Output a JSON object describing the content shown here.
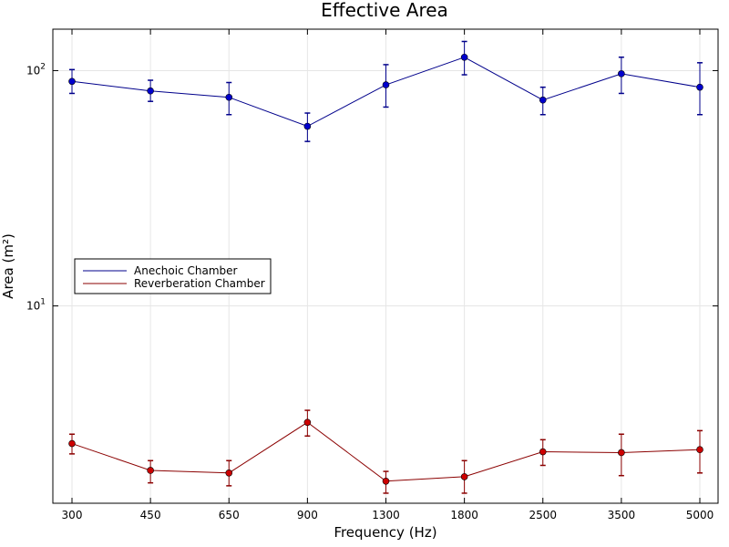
{
  "chart_data": {
    "type": "line",
    "title": "Effective Area",
    "xlabel": "Frequency (Hz)",
    "ylabel": "Area (m²)",
    "categories": [
      "300",
      "450",
      "650",
      "900",
      "1300",
      "1800",
      "2500",
      "3500",
      "5000"
    ],
    "y_scale": "log",
    "ylim": [
      1.45,
      150
    ],
    "yticks": [
      {
        "value": 10,
        "base": "10",
        "exp": "1"
      },
      {
        "value": 100,
        "base": "10",
        "exp": "2"
      }
    ],
    "grid": true,
    "legend": "middle-left",
    "series": [
      {
        "name": "Anechoic Chamber",
        "color": "#00008b",
        "marker_color": "#0000cd",
        "values": [
          90,
          82,
          77,
          58,
          87,
          114,
          75,
          97,
          85
        ],
        "upper": [
          101,
          91,
          89,
          66,
          106,
          133,
          85,
          114,
          108
        ],
        "lower": [
          80,
          74,
          65,
          50,
          70,
          96,
          65,
          80,
          65
        ]
      },
      {
        "name": "Reverberation Chamber",
        "color": "#8b0000",
        "marker_color": "#cd0000",
        "values": [
          2.6,
          2.0,
          1.95,
          3.2,
          1.8,
          1.88,
          2.4,
          2.38,
          2.45
        ],
        "upper": [
          2.85,
          2.2,
          2.2,
          3.6,
          1.98,
          2.2,
          2.7,
          2.85,
          2.95
        ],
        "lower": [
          2.35,
          1.77,
          1.72,
          2.8,
          1.6,
          1.6,
          2.1,
          1.9,
          1.95
        ]
      }
    ]
  }
}
